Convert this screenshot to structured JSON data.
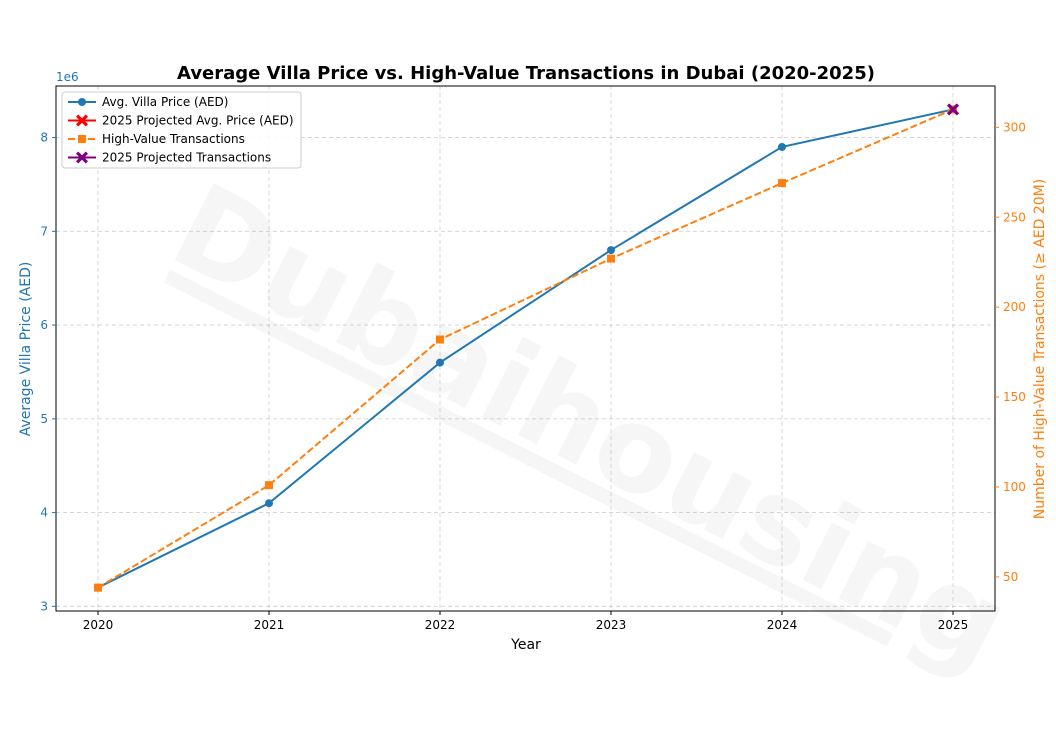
{
  "chart_data": {
    "type": "line",
    "title": "Average Villa Price vs. High-Value Transactions in Dubai (2020-2025)",
    "xlabel": "Year",
    "ylabel_left": "Average Villa Price (AED)",
    "ylabel_right": "Number of High-Value Transactions (≥ AED 20M)",
    "left_axis_offset_label": "1e6",
    "watermark": "Dubaihousing",
    "x": [
      "2020",
      "2021",
      "2022",
      "2023",
      "2024",
      "2025"
    ],
    "x_ticks": [
      "2020",
      "2021",
      "2022",
      "2023",
      "2024",
      "2025"
    ],
    "y_left_ticks": [
      "3",
      "4",
      "5",
      "6",
      "7",
      "8"
    ],
    "y_right_ticks": [
      "50",
      "100",
      "150",
      "200",
      "250",
      "300"
    ],
    "y_left_lim": [
      2950000,
      8550000
    ],
    "y_right_lim": [
      31,
      323
    ],
    "grid": true,
    "legend_position": "top-left",
    "series": [
      {
        "name": "Avg. Villa Price (AED)",
        "axis": "left",
        "color": "#1f77b4",
        "style": "solid",
        "marker": "circle",
        "x": [
          "2020",
          "2021",
          "2022",
          "2023",
          "2024",
          "2025"
        ],
        "values": [
          3200000,
          4100000,
          5600000,
          6800000,
          7900000,
          8300000
        ]
      },
      {
        "name": "2025 Projected Avg. Price (AED)",
        "axis": "left",
        "color": "#ff0000",
        "style": "solid",
        "marker": "x",
        "x": [
          "2025"
        ],
        "values": [
          8300000
        ]
      },
      {
        "name": "High-Value Transactions",
        "axis": "right",
        "color": "#ff7f0e",
        "style": "dashed",
        "marker": "square",
        "x": [
          "2020",
          "2021",
          "2022",
          "2023",
          "2024",
          "2025"
        ],
        "values": [
          44,
          101,
          182,
          227,
          269,
          310
        ]
      },
      {
        "name": "2025 Projected Transactions",
        "axis": "right",
        "color": "#800080",
        "style": "solid",
        "marker": "x",
        "x": [
          "2025"
        ],
        "values": [
          310
        ]
      }
    ]
  }
}
